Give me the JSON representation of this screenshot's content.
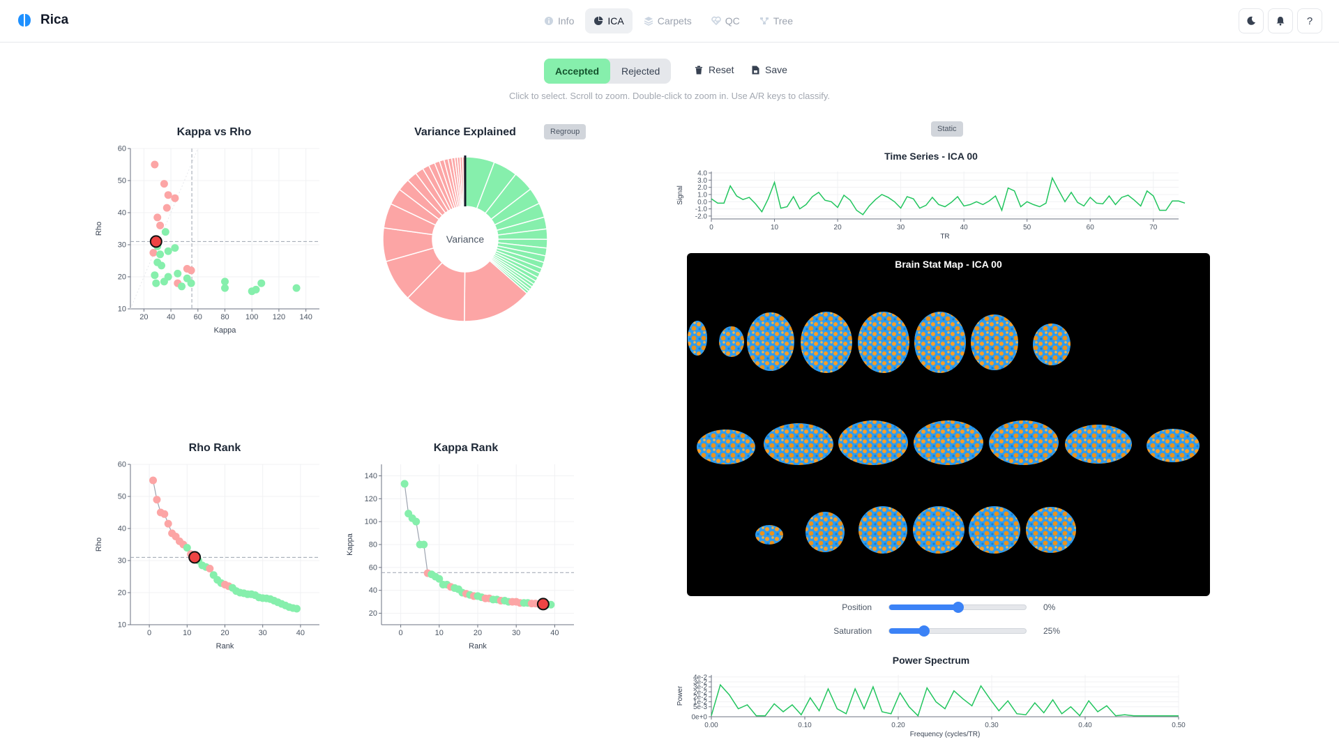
{
  "app": {
    "title": "Rica",
    "brand_color": "#1e90ff"
  },
  "nav": {
    "tabs": [
      {
        "label": "Info",
        "icon": "info-icon",
        "active": false
      },
      {
        "label": "ICA",
        "icon": "pie-icon",
        "active": true
      },
      {
        "label": "Carpets",
        "icon": "layers-icon",
        "active": false
      },
      {
        "label": "QC",
        "icon": "heart-pulse-icon",
        "active": false
      },
      {
        "label": "Tree",
        "icon": "tree-icon",
        "active": false
      }
    ],
    "right_buttons": [
      {
        "icon": "moon-icon"
      },
      {
        "icon": "bell-icon"
      },
      {
        "label": "?"
      }
    ]
  },
  "toolbar": {
    "accepted_label": "Accepted",
    "rejected_label": "Rejected",
    "reset_label": "Reset",
    "save_label": "Save",
    "hint": "Click to select. Scroll to zoom. Double-click to zoom in. Use A/R keys to classify."
  },
  "colors": {
    "accepted": "#86efac",
    "rejected": "#fca5a5",
    "selected": "#ef4444",
    "line": "#22c55e",
    "accent": "#3b82f6"
  },
  "kappa_rho": {
    "title": "Kappa vs Rho",
    "xlabel": "Kappa",
    "ylabel": "Rho",
    "xticks": [
      "20",
      "40",
      "60",
      "80",
      "100",
      "120",
      "140"
    ],
    "yticks": [
      "10",
      "20",
      "30",
      "40",
      "50",
      "60"
    ],
    "xlim": [
      10,
      150
    ],
    "ylim": [
      10,
      60
    ],
    "kappa_threshold": 55.5,
    "rho_threshold": 31,
    "points_rejected": [
      [
        28,
        55
      ],
      [
        35,
        49
      ],
      [
        38,
        45.5
      ],
      [
        43,
        44.5
      ],
      [
        37,
        41.5
      ],
      [
        30,
        38.5
      ],
      [
        32,
        36
      ],
      [
        27,
        27.5
      ],
      [
        52,
        22.5
      ],
      [
        55,
        22
      ],
      [
        45,
        18
      ]
    ],
    "points_accepted": [
      [
        36,
        34
      ],
      [
        30,
        29.5
      ],
      [
        38,
        28
      ],
      [
        43,
        29
      ],
      [
        32,
        27
      ],
      [
        30,
        24.5
      ],
      [
        33,
        23.5
      ],
      [
        38,
        20
      ],
      [
        45,
        21
      ],
      [
        52,
        19.5
      ],
      [
        28,
        20.5
      ],
      [
        29,
        18
      ],
      [
        35,
        18.5
      ],
      [
        48,
        17
      ],
      [
        55,
        18
      ],
      [
        80,
        18.5
      ],
      [
        80,
        16.5
      ],
      [
        107,
        18
      ],
      [
        103,
        16
      ],
      [
        100,
        15.5
      ],
      [
        133,
        16.5
      ]
    ],
    "selected": [
      29,
      31
    ]
  },
  "variance": {
    "title": "Variance Explained",
    "center_label": "Variance",
    "regroup_label": "Regroup",
    "accepted": [
      5.7,
      4.7,
      4.0,
      3.2,
      2.8,
      2.3,
      2.0,
      1.7,
      1.5,
      1.3,
      1.2,
      1.0,
      0.9,
      0.8,
      0.7,
      0.6,
      0.6,
      0.5,
      0.5
    ],
    "rejected": [
      13.5,
      12.0,
      8.2,
      6.5,
      4.8,
      3.2,
      2.4,
      2.0,
      1.6,
      1.3,
      1.2,
      1.0,
      0.9,
      0.8,
      0.7,
      0.6,
      0.5,
      0.5,
      0.5,
      0.5
    ]
  },
  "rho_rank": {
    "title": "Rho Rank",
    "xlabel": "Rank",
    "ylabel": "Rho",
    "xticks": [
      "0",
      "10",
      "20",
      "30",
      "40"
    ],
    "yticks": [
      "10",
      "20",
      "30",
      "40",
      "50",
      "60"
    ],
    "xlim": [
      -5,
      45
    ],
    "ylim": [
      10,
      60
    ],
    "threshold": 31,
    "values": [
      55,
      49,
      45,
      44.5,
      41.5,
      38.5,
      37.5,
      36,
      35,
      34,
      32,
      31,
      30,
      28.5,
      28,
      27.5,
      25.5,
      24,
      23,
      22.5,
      22,
      21.5,
      20.5,
      20,
      19.8,
      19.5,
      19.5,
      19.2,
      18.5,
      18.3,
      18.2,
      18,
      17.5,
      17,
      16.5,
      16,
      15.5,
      15.2,
      15
    ],
    "classes": [
      "r",
      "r",
      "r",
      "r",
      "r",
      "r",
      "r",
      "r",
      "r",
      "a",
      "r",
      "s",
      "a",
      "a",
      "a",
      "r",
      "a",
      "a",
      "a",
      "r",
      "r",
      "a",
      "a",
      "a",
      "a",
      "a",
      "a",
      "a",
      "a",
      "a",
      "a",
      "a",
      "a",
      "a",
      "a",
      "a",
      "a",
      "a",
      "a"
    ]
  },
  "kappa_rank": {
    "title": "Kappa Rank",
    "xlabel": "Rank",
    "ylabel": "Kappa",
    "xticks": [
      "0",
      "10",
      "20",
      "30",
      "40"
    ],
    "yticks": [
      "20",
      "40",
      "60",
      "80",
      "100",
      "120",
      "140"
    ],
    "xlim": [
      -5,
      45
    ],
    "ylim": [
      10,
      150
    ],
    "threshold": 55.5,
    "values": [
      133,
      107,
      103,
      100,
      80,
      80,
      55,
      54,
      52,
      50,
      45,
      45,
      43,
      42,
      41,
      38,
      37,
      36,
      35,
      35,
      34,
      33,
      33,
      32,
      32,
      31,
      31,
      30,
      30,
      30,
      29,
      29,
      29,
      28.5,
      28.5,
      28,
      28,
      27.5,
      27.5
    ],
    "classes": [
      "a",
      "a",
      "a",
      "a",
      "a",
      "a",
      "r",
      "a",
      "a",
      "a",
      "a",
      "a",
      "r",
      "a",
      "a",
      "a",
      "r",
      "a",
      "r",
      "a",
      "a",
      "r",
      "r",
      "a",
      "a",
      "r",
      "a",
      "a",
      "r",
      "r",
      "r",
      "a",
      "a",
      "r",
      "r",
      "r",
      "s",
      "a",
      "a"
    ]
  },
  "time_series": {
    "title": "Time Series - ICA 00",
    "xlabel": "TR",
    "ylabel": "Signal",
    "chip": "Static",
    "xticks": [
      "0",
      "10",
      "20",
      "30",
      "40",
      "50",
      "60",
      "70"
    ],
    "yticks": [
      "4.0",
      "3.0",
      "2.0",
      "1.0",
      "0.0",
      "-1.0",
      "-2.0"
    ],
    "xlim": [
      0,
      74
    ],
    "ylim": [
      -2.4,
      4.2
    ],
    "values": [
      0.4,
      -0.2,
      -0.2,
      2.2,
      0.8,
      0.3,
      0.6,
      -0.3,
      -1.4,
      0.4,
      2.7,
      -0.9,
      -0.7,
      0.7,
      -1.0,
      -0.4,
      0.7,
      1.3,
      0.2,
      0.0,
      -0.8,
      0.9,
      0.2,
      -1.2,
      -1.8,
      -0.6,
      0.3,
      1.0,
      0.6,
      0.0,
      -0.9,
      0.7,
      0.4,
      -0.9,
      -0.5,
      0.6,
      -0.4,
      -0.7,
      -0.1,
      0.7,
      -0.6,
      -0.4,
      0.0,
      -0.4,
      0.1,
      0.8,
      -1.2,
      1.9,
      1.5,
      -0.7,
      0.0,
      -0.4,
      -0.7,
      -0.2,
      3.3,
      1.6,
      0.0,
      1.3,
      -0.1,
      -0.6,
      0.6,
      -0.2,
      -0.3,
      0.8,
      -0.4,
      0.6,
      0.9,
      0.2,
      -0.6,
      1.5,
      0.8,
      -1.2,
      -1.2,
      0.1,
      0.1,
      -0.2
    ],
    "line_color": "#22c55e"
  },
  "brain_map": {
    "title": "Brain Stat Map - ICA 00"
  },
  "sliders": {
    "position": {
      "label": "Position",
      "value": "0%",
      "fraction": 0.5
    },
    "saturation": {
      "label": "Saturation",
      "value": "25%",
      "fraction": 0.25
    }
  },
  "power_spectrum": {
    "title": "Power Spectrum",
    "xlabel": "Frequency (cycles/TR)",
    "ylabel": "Power",
    "xticks": [
      "0.00",
      "0.10",
      "0.20",
      "0.30",
      "0.40",
      "0.50"
    ],
    "yticks": [
      "4e-2",
      "3e-2",
      "3e-2",
      "2e-2",
      "2e-2",
      "1e-2",
      "5e-3",
      "0e+0"
    ],
    "xlim": [
      0,
      0.5
    ],
    "ylim": [
      0,
      0.042
    ],
    "values": [
      0.001,
      0.032,
      0.022,
      0.008,
      0.012,
      0.001,
      0.001,
      0.013,
      0.005,
      0.012,
      0.002,
      0.019,
      0.006,
      0.028,
      0.008,
      0.003,
      0.028,
      0.008,
      0.03,
      0.005,
      0.003,
      0.024,
      0.01,
      0.001,
      0.029,
      0.015,
      0.008,
      0.026,
      0.018,
      0.011,
      0.031,
      0.018,
      0.006,
      0.016,
      0.003,
      0.002,
      0.014,
      0.004,
      0.017,
      0.003,
      0.01,
      0.001,
      0.016,
      0.005,
      0.011,
      0.001,
      0.002,
      0.001,
      0.001,
      0.001,
      0.001,
      0.001,
      0.001
    ],
    "line_color": "#22c55e"
  }
}
